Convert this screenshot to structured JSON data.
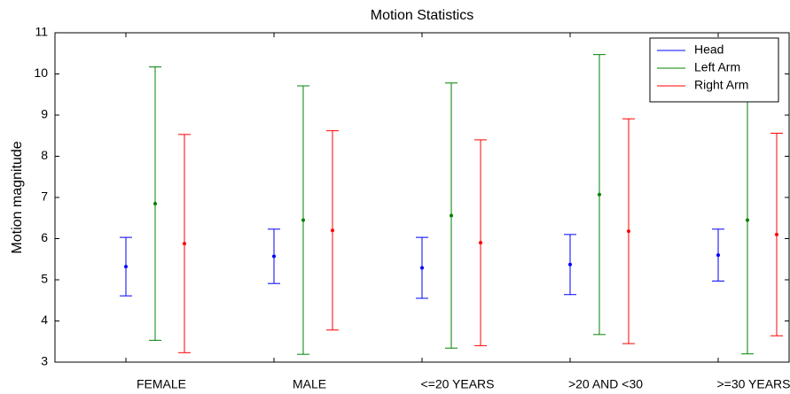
{
  "chart_data": {
    "type": "errorbar",
    "title": "Motion Statistics",
    "y_label": "Motion magnitude",
    "categories": [
      "FEMALE",
      "MALE",
      "<=20 YEARS",
      ">20 AND <30",
      ">=30 YEARS"
    ],
    "series": [
      {
        "name": "Head",
        "color": "#0000ff",
        "values": [
          5.32,
          5.57,
          5.29,
          5.37,
          5.6
        ],
        "errors": [
          0.71,
          0.66,
          0.74,
          0.73,
          0.63
        ]
      },
      {
        "name": "Left Arm",
        "color": "#008000",
        "values": [
          6.85,
          6.45,
          6.56,
          7.07,
          6.45
        ],
        "errors": [
          3.32,
          3.26,
          3.22,
          3.4,
          3.25
        ]
      },
      {
        "name": "Right Arm",
        "color": "#ff0000",
        "values": [
          5.88,
          6.2,
          5.9,
          6.18,
          6.1
        ],
        "errors": [
          2.65,
          2.42,
          2.5,
          2.73,
          2.46
        ]
      }
    ],
    "ylim": [
      3,
      11
    ],
    "yticks": [
      3,
      4,
      5,
      6,
      7,
      8,
      9,
      10,
      11
    ],
    "grid": false,
    "legend": "upper right"
  }
}
